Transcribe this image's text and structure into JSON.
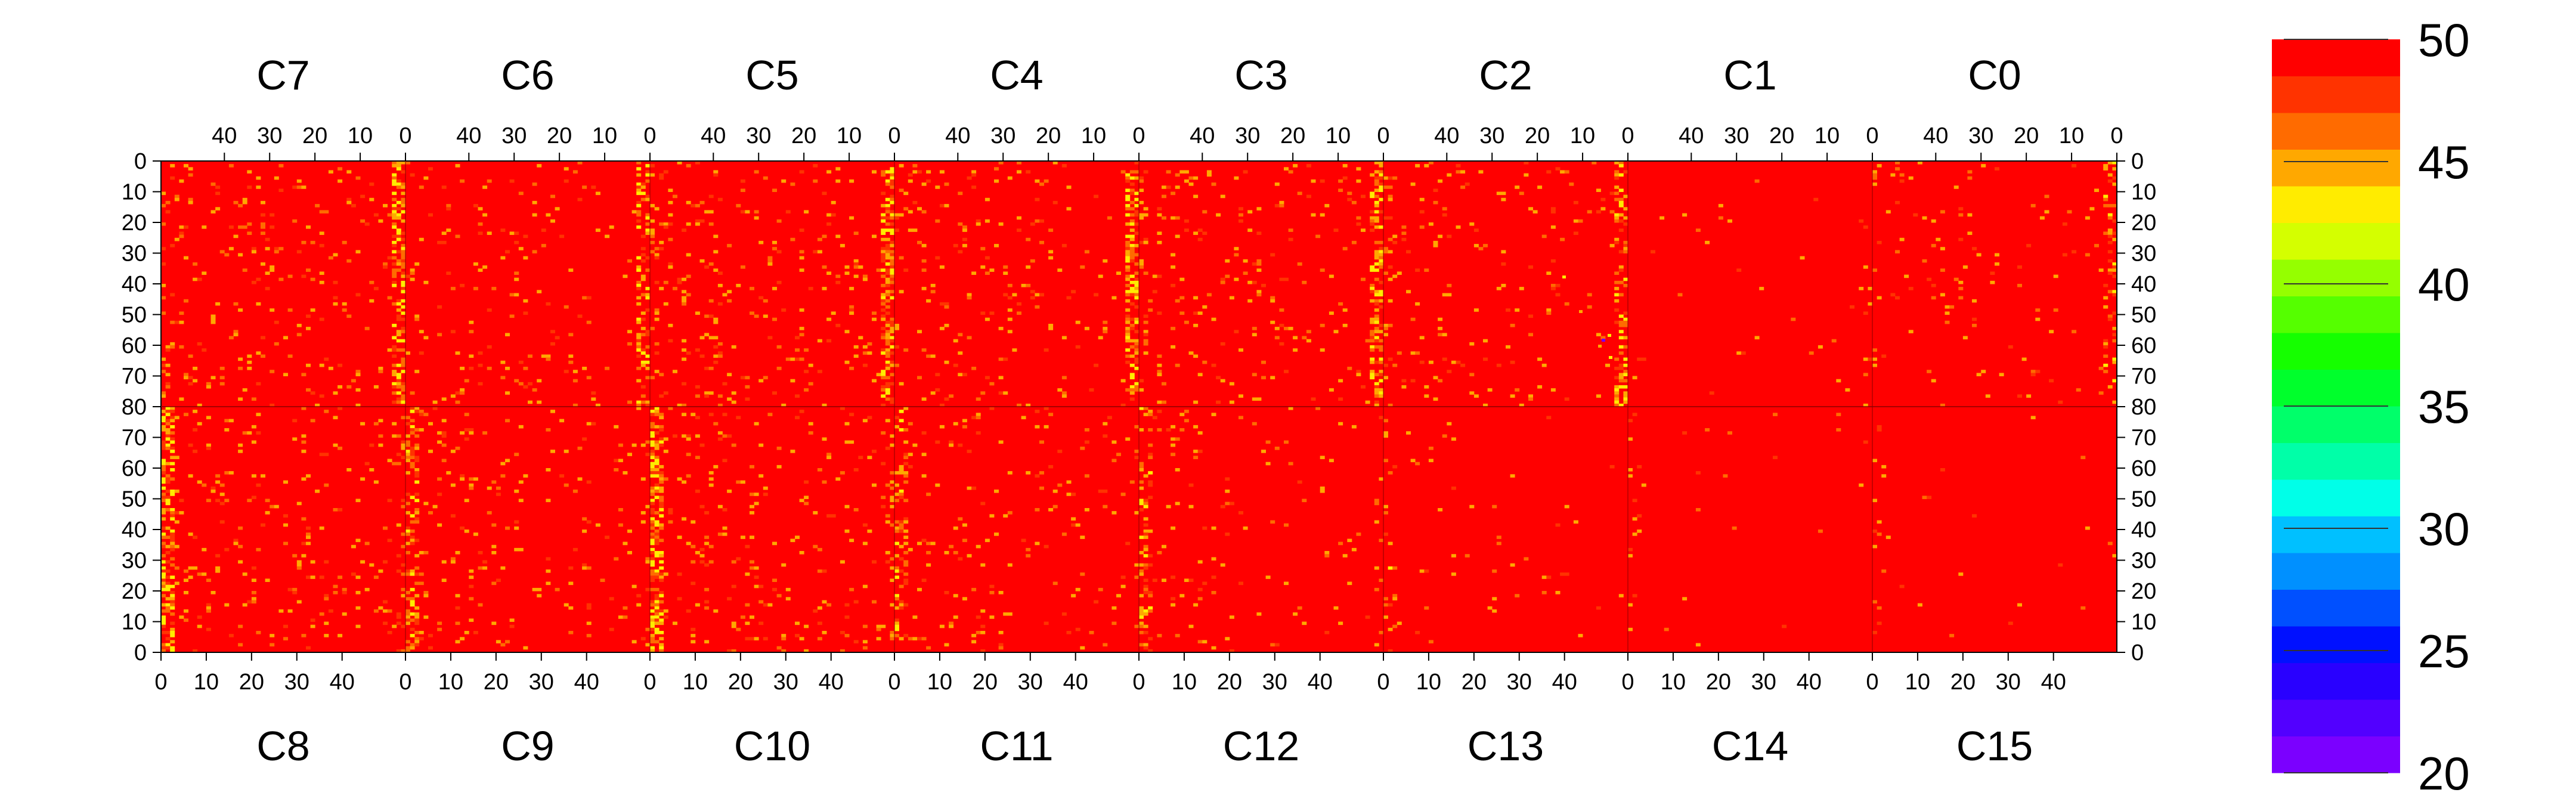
{
  "chart_data": {
    "type": "heatmap",
    "title": "",
    "top_chip_labels": [
      "C7",
      "C6",
      "C5",
      "C4",
      "C3",
      "C2",
      "C1",
      "C0"
    ],
    "bottom_chip_labels": [
      "C8",
      "C9",
      "C10",
      "C11",
      "C12",
      "C13",
      "C14",
      "C15"
    ],
    "top_x_tick_labels": [
      "40",
      "30",
      "20",
      "10",
      "0"
    ],
    "bottom_x_tick_labels": [
      "0",
      "10",
      "20",
      "30",
      "40"
    ],
    "top_y_tick_labels": [
      "0",
      "10",
      "20",
      "30",
      "40",
      "50",
      "60",
      "70",
      "80"
    ],
    "bottom_y_tick_labels": [
      "70",
      "60",
      "50",
      "40",
      "30",
      "20",
      "10",
      "0"
    ],
    "columns_per_chip": 54,
    "rows_per_half": 80,
    "colorbar": {
      "min": 20,
      "max": 50,
      "tick_labels": [
        "50",
        "45",
        "40",
        "35",
        "30",
        "25",
        "20"
      ],
      "colors": [
        "#7b00ff",
        "#5200ff",
        "#2900ff",
        "#0010ff",
        "#0050ff",
        "#0090ff",
        "#00c0ff",
        "#00ffe8",
        "#00ffa8",
        "#00ff6a",
        "#00ff2c",
        "#15ff00",
        "#55ff00",
        "#95ff00",
        "#d4ff00",
        "#ffec00",
        "#ffa800",
        "#ff6b00",
        "#ff3300",
        "#ff0000"
      ]
    },
    "values_note_dominant": 50,
    "hot_columns": {
      "top": [
        [
          7,
          0.55
        ],
        [
          6,
          0.35
        ],
        [
          5,
          0.6
        ],
        [
          4,
          0.5
        ],
        [
          3,
          0.45
        ],
        [
          2,
          0.4
        ],
        [
          1,
          0.05
        ],
        [
          0,
          0.25
        ]
      ],
      "bottom": [
        [
          8,
          0.55
        ],
        [
          9,
          0.4
        ],
        [
          10,
          0.6
        ],
        [
          11,
          0.35
        ],
        [
          12,
          0.3
        ],
        [
          13,
          0.1
        ],
        [
          14,
          0.05
        ],
        [
          15,
          0.05
        ]
      ]
    }
  }
}
